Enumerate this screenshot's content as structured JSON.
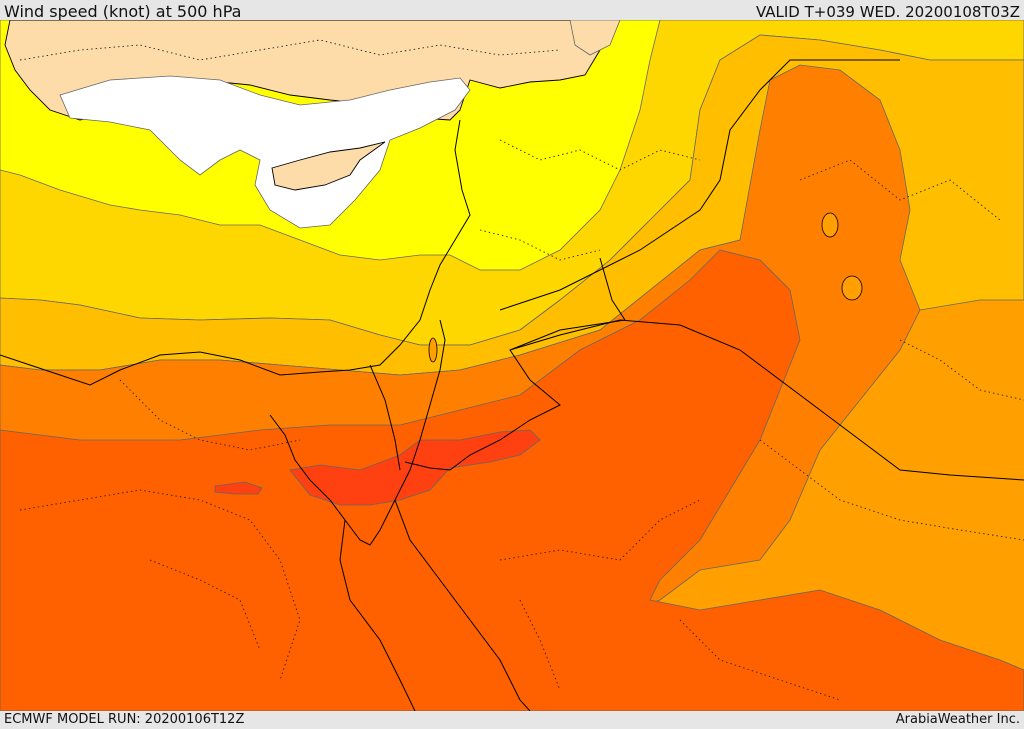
{
  "header": {
    "title": "Wind speed (knot) at 500 hPa",
    "valid": "VALID T+039 WED. 20200108T03Z"
  },
  "footer": {
    "run": "ECMWF MODEL RUN: 20200106T12Z",
    "brand": "ArabiaWeather Inc."
  },
  "colors": {
    "sea_background": "#ffd700",
    "light_yellow": "#ffff00",
    "gold": "#ffd700",
    "amber": "#ffbf00",
    "orange_light": "#ff9f00",
    "orange": "#ff8000",
    "orange_dark": "#ff6000",
    "red_orange": "#ff4010",
    "pale_peach": "#fddcaa",
    "white": "#ffffff"
  }
}
